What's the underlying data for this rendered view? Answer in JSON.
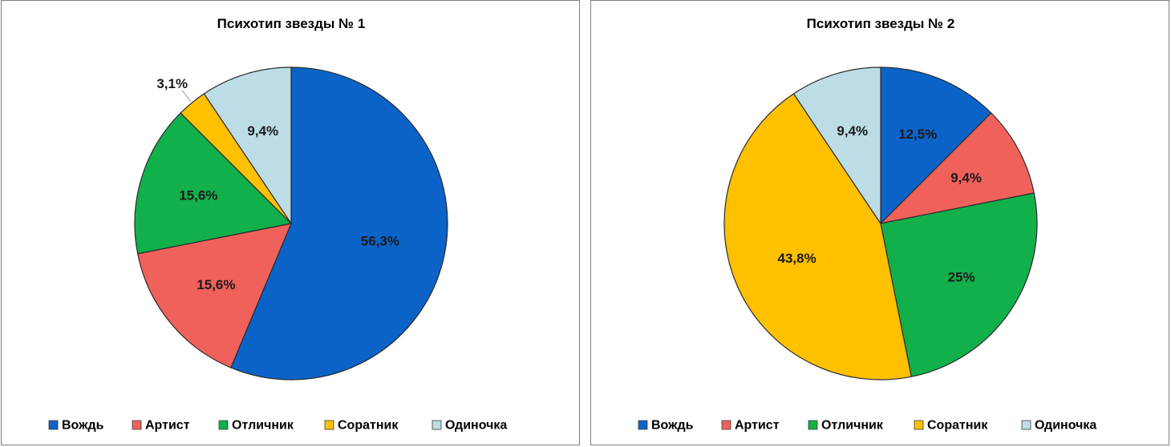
{
  "chart_data": [
    {
      "type": "pie",
      "title": "Психотип звезды № 1",
      "categories": [
        "Вождь",
        "Артист",
        "Отличник",
        "Соратник",
        "Одиночка"
      ],
      "values": [
        56.3,
        15.6,
        15.6,
        3.1,
        9.4
      ],
      "labels": [
        "56,3%",
        "15,6%",
        "15,6%",
        "3,1%",
        "9,4%"
      ],
      "colors": [
        "#0b63c8",
        "#f0615c",
        "#11b04b",
        "#ffc000",
        "#bcdde6"
      ],
      "legend": "bottom",
      "start_angle": "12 o'clock",
      "direction": "clockwise"
    },
    {
      "type": "pie",
      "title": "Психотип звезды № 2",
      "categories": [
        "Вождь",
        "Артист",
        "Отличник",
        "Соратник",
        "Одиночка"
      ],
      "values": [
        12.5,
        9.4,
        25,
        43.8,
        9.4
      ],
      "labels": [
        "12,5%",
        "9,4%",
        "25%",
        "43,8%",
        "9,4%"
      ],
      "colors": [
        "#0b63c8",
        "#f0615c",
        "#11b04b",
        "#ffc000",
        "#bcdde6"
      ],
      "legend": "bottom",
      "start_angle": "12 o'clock",
      "direction": "clockwise"
    }
  ]
}
